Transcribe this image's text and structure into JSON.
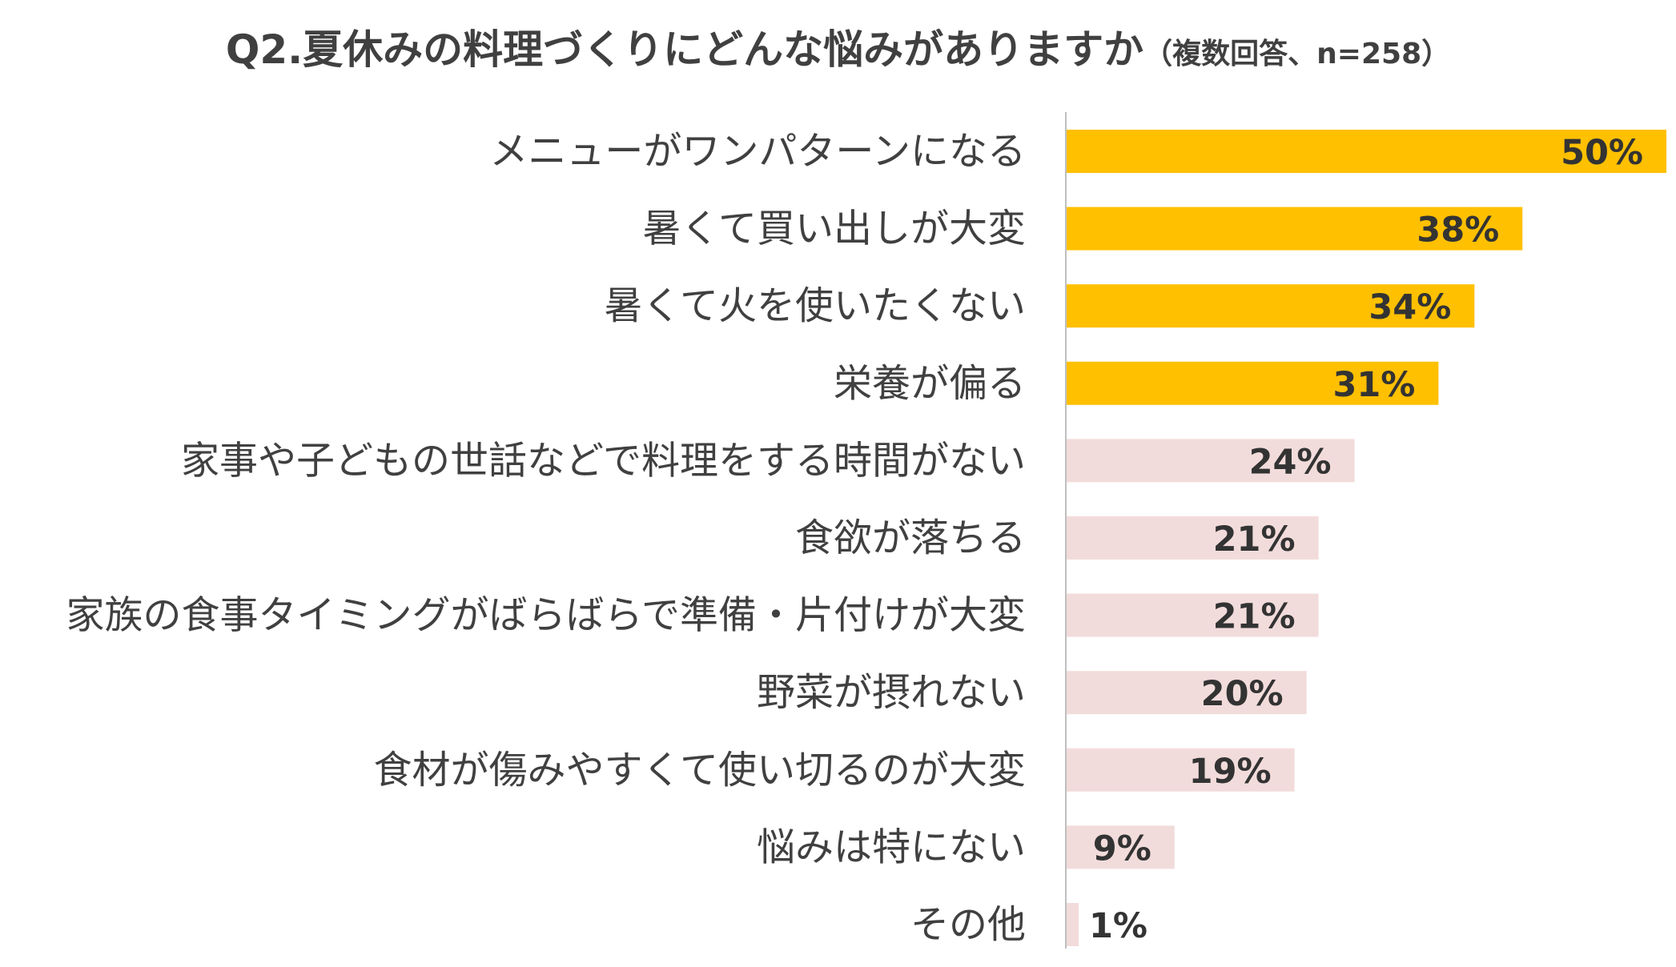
{
  "chart_data": {
    "type": "bar",
    "orientation": "horizontal",
    "title": "Q2.夏休みの料理づくりにどんな悩みがありますか",
    "subtitle": "（複数回答、n=258）",
    "categories": [
      "メニューがワンパターンになる",
      "暑くて買い出しが大変",
      "暑くて火を使いたくない",
      "栄養が偏る",
      "家事や子どもの世話などで料理をする時間がない",
      "食欲が落ちる",
      "家族の食事タイミングがばらばらで準備・片付けが大変",
      "野菜が摂れない",
      "食材が傷みやすくて使い切るのが大変",
      "悩みは特にない",
      "その他"
    ],
    "values": [
      50,
      38,
      34,
      31,
      24,
      21,
      21,
      20,
      19,
      9,
      1
    ],
    "value_labels": [
      "50%",
      "38%",
      "34%",
      "31%",
      "24%",
      "21%",
      "21%",
      "20%",
      "19%",
      "9%",
      "1%"
    ],
    "highlight_top": 4,
    "colors": {
      "highlight": "#FFC000",
      "normal": "#F2DCDB",
      "axis": "#BFBFBF",
      "text": "#404040"
    },
    "xlim": [
      0,
      50
    ],
    "grid": false,
    "legend": "none"
  }
}
